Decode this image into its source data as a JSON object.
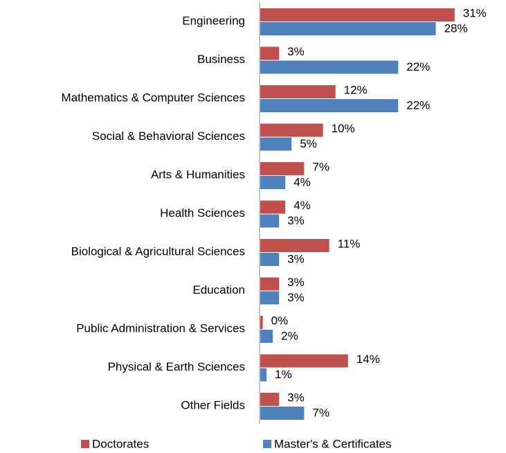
{
  "chart_data": {
    "type": "bar",
    "orientation": "horizontal",
    "categories": [
      "Engineering",
      "Business",
      "Mathematics & Computer Sciences",
      "Social & Behavioral Sciences",
      "Arts & Humanities",
      "Health Sciences",
      "Biological & Agricultural Sciences",
      "Education",
      "Public Administration & Services",
      "Physical & Earth Sciences",
      "Other Fields"
    ],
    "series": [
      {
        "name": "Doctorates",
        "color": "#c0504d",
        "values": [
          31,
          3,
          12,
          10,
          7,
          4,
          11,
          3,
          0.4,
          14,
          3
        ],
        "value_labels": [
          "31%",
          "3%",
          "12%",
          "10%",
          "7%",
          "4%",
          "11%",
          "3%",
          "0%",
          "14%",
          "3%"
        ]
      },
      {
        "name": "Master's & Certificates",
        "color": "#4f81bd",
        "values": [
          28,
          22,
          22,
          5,
          4,
          3,
          3,
          3,
          2,
          1,
          7
        ],
        "value_labels": [
          "28%",
          "22%",
          "22%",
          "5%",
          "4%",
          "3%",
          "3%",
          "3%",
          "2%",
          "1%",
          "7%"
        ]
      }
    ],
    "xlim": [
      0,
      35
    ],
    "legend": "bottom"
  }
}
